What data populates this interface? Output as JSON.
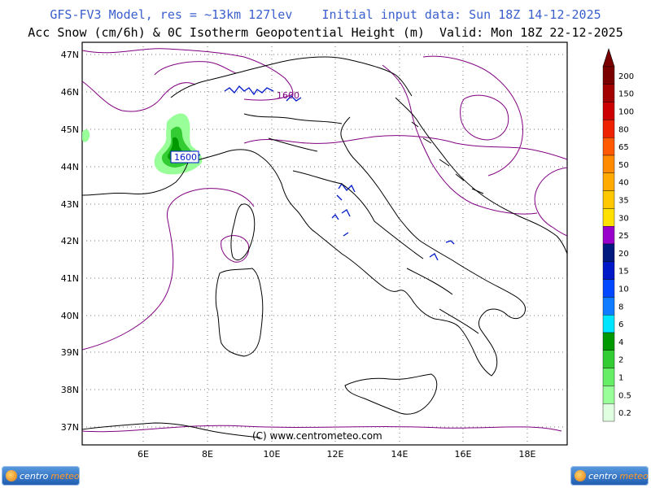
{
  "header": {
    "line1": "GFS-FV3 Model, res = ~13km 127lev    Initial input data: Sun 18Z 14-12-2025",
    "line2": "Acc Snow (cm/6h) & 0C Isotherm Geopotential Height (m)  Valid: Mon 18Z 22-12-2025"
  },
  "map": {
    "lat_labels": [
      "47N",
      "46N",
      "45N",
      "44N",
      "43N",
      "42N",
      "41N",
      "40N",
      "39N",
      "38N",
      "37N"
    ],
    "lon_labels": [
      "6E",
      "8E",
      "10E",
      "12E",
      "14E",
      "16E",
      "18E"
    ],
    "contour_label_1": "1600",
    "contour_label_2": "1600",
    "copyright": "(C) www.centrometeo.com",
    "colors": {
      "isotherm": "#800080",
      "coast": "#000000",
      "grid": "#7a7a7a"
    }
  },
  "legend": {
    "levels": [
      {
        "label": "200",
        "color": "#7a0000"
      },
      {
        "label": "150",
        "color": "#a30000"
      },
      {
        "label": "100",
        "color": "#cc0000"
      },
      {
        "label": "80",
        "color": "#ee2200"
      },
      {
        "label": "65",
        "color": "#ff5a00"
      },
      {
        "label": "50",
        "color": "#ff8c00"
      },
      {
        "label": "40",
        "color": "#ffaa00"
      },
      {
        "label": "35",
        "color": "#ffc800"
      },
      {
        "label": "30",
        "color": "#ffe000"
      },
      {
        "label": "25",
        "color": "#9a00cc"
      },
      {
        "label": "20",
        "color": "#001a80"
      },
      {
        "label": "15",
        "color": "#0019c8"
      },
      {
        "label": "10",
        "color": "#0048ff"
      },
      {
        "label": "8",
        "color": "#0f7bff"
      },
      {
        "label": "6",
        "color": "#00e5ff"
      },
      {
        "label": "4",
        "color": "#009900"
      },
      {
        "label": "2",
        "color": "#33cc33"
      },
      {
        "label": "1",
        "color": "#66ee66"
      },
      {
        "label": "0.5",
        "color": "#99ff99"
      },
      {
        "label": "0.2",
        "color": "#e0ffe0"
      }
    ]
  },
  "logos": {
    "left_text_a": "centro",
    "left_text_b": "meteo",
    "right_text_a": "centro",
    "right_text_b": "meteo"
  }
}
